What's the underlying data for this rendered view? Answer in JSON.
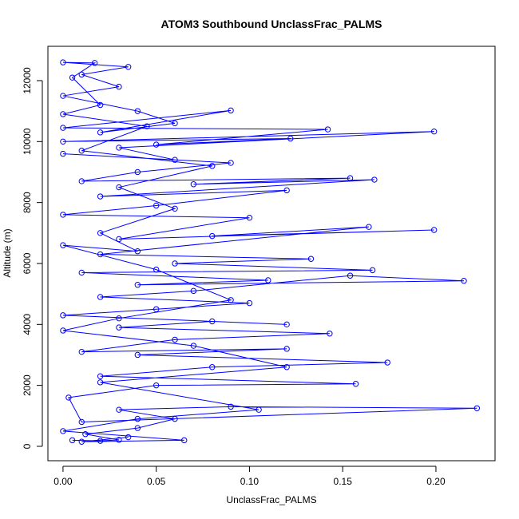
{
  "chart_data": {
    "type": "line",
    "marker": "open-circle",
    "title": "ATOM3 Southbound UnclassFrac_PALMS",
    "x_label": "UnclassFrac_PALMS",
    "y_label": "Altitude (m)",
    "color": "#0000ff",
    "x": [
      0.005,
      0.02,
      0.03,
      0.012,
      0.04,
      0.06,
      0.03,
      0.09,
      0.222,
      0.01,
      0.003,
      0.05,
      0.157,
      0.02,
      0.08,
      0.174,
      0.04,
      0.12,
      0.01,
      0.06,
      0.143,
      0.03,
      0.08,
      0.12,
      0.0,
      0.05,
      0.1,
      0.02,
      0.07,
      0.154,
      0.215,
      0.04,
      0.11,
      0.01,
      0.166,
      0.06,
      0.133,
      0.02,
      0.164,
      0.08,
      0.199,
      0.03,
      0.1,
      0.0,
      0.05,
      0.12,
      0.02,
      0.167,
      0.07,
      0.154,
      0.01,
      0.04,
      0.09,
      0.0,
      0.06,
      0.03,
      0.199,
      0.0,
      0.122,
      0.05,
      0.142,
      0.0,
      0.09,
      0.02,
      0.06,
      0.04,
      0.0,
      0.03,
      0.01,
      0.035,
      0.0,
      0.017,
      0.005,
      0.02,
      0.0,
      0.045,
      0.01,
      0.08,
      0.03,
      0.06,
      0.02,
      0.04,
      0.0,
      0.05,
      0.09,
      0.03,
      0.0,
      0.07,
      0.12,
      0.02,
      0.105,
      0.04,
      0.0,
      0.065,
      0.01,
      0.035
    ],
    "values": [
      200,
      180,
      210,
      400,
      600,
      900,
      1200,
      1300,
      1250,
      800,
      1600,
      2000,
      2050,
      2300,
      2600,
      2750,
      3000,
      3200,
      3100,
      3500,
      3700,
      3900,
      4100,
      4000,
      4300,
      4500,
      4700,
      4900,
      5100,
      5600,
      5430,
      5300,
      5450,
      5700,
      5780,
      6000,
      6150,
      6300,
      7200,
      6900,
      7100,
      6800,
      7500,
      7600,
      7900,
      8400,
      8200,
      8750,
      8600,
      8800,
      8700,
      9000,
      9300,
      9600,
      9400,
      9800,
      10330,
      10000,
      10100,
      9900,
      10400,
      10450,
      11020,
      10300,
      10600,
      11000,
      11500,
      11800,
      12200,
      12450,
      12600,
      12580,
      12100,
      11200,
      10900,
      10500,
      9700,
      9200,
      8500,
      7800,
      7000,
      6400,
      6600,
      5800,
      4800,
      4200,
      3800,
      3300,
      2600,
      2100,
      1200,
      900,
      500,
      200,
      150,
      300
    ],
    "xlim": [
      -0.0081,
      0.2317
    ],
    "ylim": [
      -472,
      13126
    ],
    "xticks": [
      {
        "value": 0,
        "label": "0.00"
      },
      {
        "value": 0.05,
        "label": "0.05"
      },
      {
        "value": 0.1,
        "label": "0.10"
      },
      {
        "value": 0.15,
        "label": "0.15"
      },
      {
        "value": 0.2,
        "label": "0.20"
      }
    ],
    "yticks": [
      0,
      2000,
      4000,
      6000,
      8000,
      10000,
      12000
    ]
  }
}
